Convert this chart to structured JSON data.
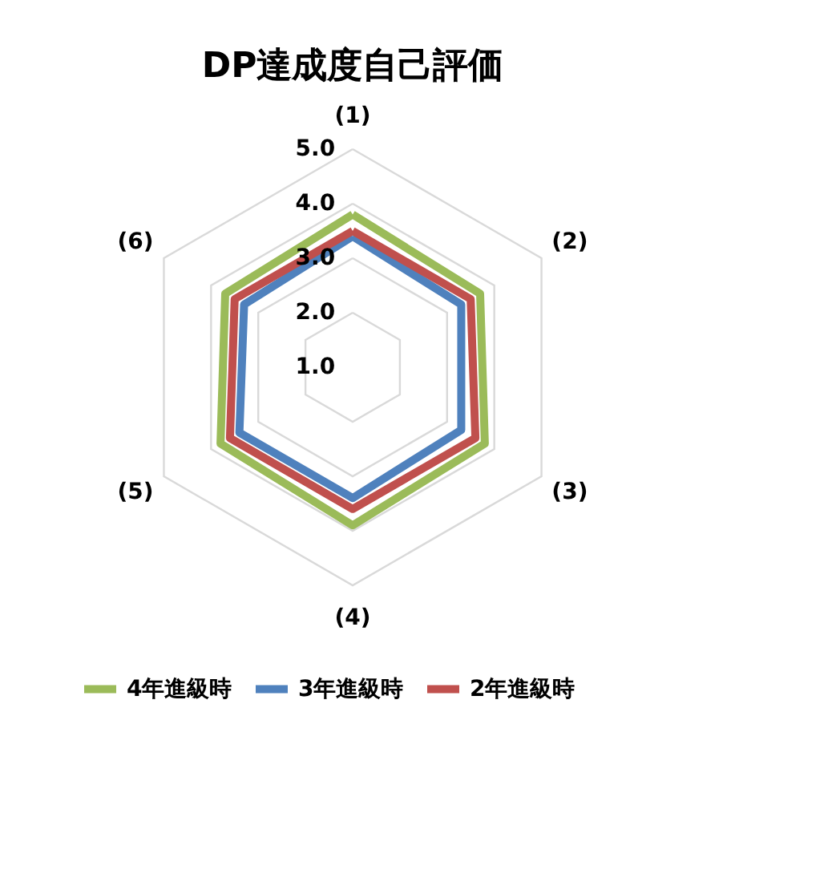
{
  "chart_data": {
    "type": "radar",
    "title": "DP達成度自己評価",
    "categories": [
      "(1)",
      "(2)",
      "(3)",
      "(4)",
      "(5)",
      "(6)"
    ],
    "series": [
      {
        "name": "4年進級時",
        "color": "#9bbb59",
        "values": [
          3.8,
          3.7,
          3.8,
          3.9,
          3.8,
          3.7
        ]
      },
      {
        "name": "3年進級時",
        "color": "#4f81bd",
        "values": [
          3.4,
          3.3,
          3.3,
          3.4,
          3.4,
          3.3
        ]
      },
      {
        "name": "2年進級時",
        "color": "#c0504d",
        "values": [
          3.5,
          3.5,
          3.6,
          3.6,
          3.6,
          3.5
        ]
      }
    ],
    "ylim": [
      1,
      5
    ],
    "yticks": [
      {
        "value": 1,
        "label": "1.0"
      },
      {
        "value": 2,
        "label": "2.0"
      },
      {
        "value": 3,
        "label": "3.0"
      },
      {
        "value": 4,
        "label": "4.0"
      },
      {
        "value": 5,
        "label": "5.0"
      }
    ],
    "grid": true,
    "legend": "bottom"
  }
}
